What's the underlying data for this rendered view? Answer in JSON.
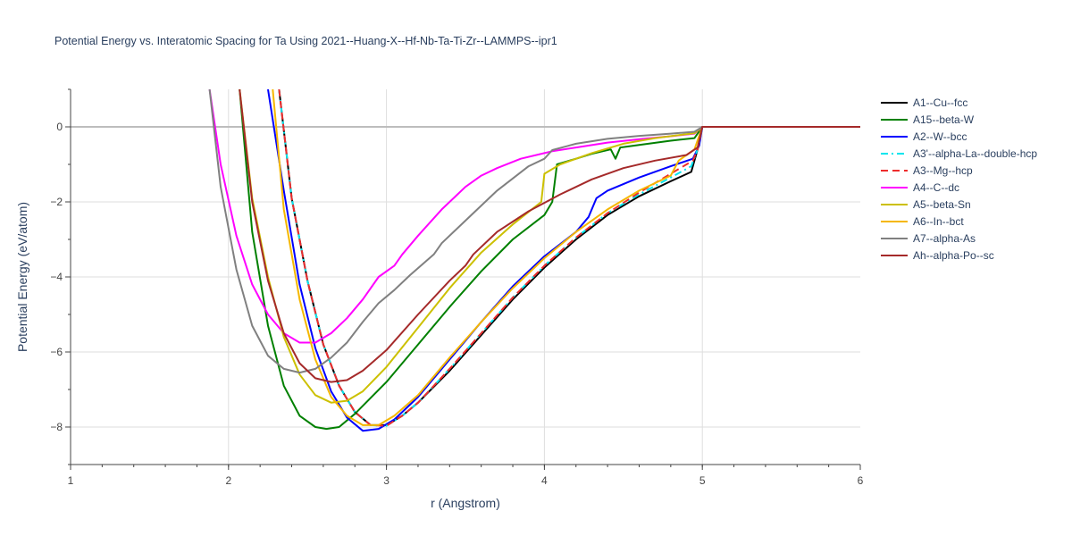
{
  "chart_data": {
    "type": "line",
    "title": "Potential Energy vs. Interatomic Spacing for Ta Using 2021--Huang-X--Hf-Nb-Ta-Ti-Zr--LAMMPS--ipr1",
    "xlabel": "r (Angstrom)",
    "ylabel": "Potential Energy (eV/atom)",
    "xlim": [
      1,
      6
    ],
    "ylim": [
      -9,
      1
    ],
    "xticks": [
      "1",
      "2",
      "3",
      "4",
      "5",
      "6"
    ],
    "yticks": [
      "−8",
      "−6",
      "−4",
      "−2",
      "0"
    ],
    "grid": true,
    "legend_position": "right",
    "series": [
      {
        "name": "A1--Cu--fcc",
        "color": "#000000",
        "dash": "solid",
        "x": [
          2.32,
          2.4,
          2.5,
          2.6,
          2.7,
          2.8,
          2.9,
          3.0,
          3.1,
          3.2,
          3.4,
          3.6,
          3.8,
          4.0,
          4.2,
          4.4,
          4.6,
          4.8,
          4.93,
          4.97,
          5.0,
          6.0
        ],
        "y": [
          1.0,
          -1.9,
          -4.1,
          -5.8,
          -6.9,
          -7.6,
          -7.95,
          -7.95,
          -7.7,
          -7.35,
          -6.5,
          -5.55,
          -4.6,
          -3.75,
          -3.0,
          -2.35,
          -1.85,
          -1.45,
          -1.2,
          -0.6,
          0.0,
          0.0
        ]
      },
      {
        "name": "A15--beta-W",
        "color": "#008000",
        "dash": "solid",
        "x": [
          2.07,
          2.15,
          2.25,
          2.35,
          2.45,
          2.55,
          2.62,
          2.7,
          2.8,
          3.0,
          3.2,
          3.4,
          3.6,
          3.8,
          4.0,
          4.05,
          4.08,
          4.2,
          4.3,
          4.42,
          4.45,
          4.48,
          4.6,
          4.8,
          4.95,
          5.0,
          6.0
        ],
        "y": [
          1.0,
          -2.8,
          -5.3,
          -6.9,
          -7.7,
          -8.0,
          -8.05,
          -8.0,
          -7.65,
          -6.8,
          -5.8,
          -4.8,
          -3.85,
          -3.0,
          -2.35,
          -2.0,
          -1.0,
          -0.85,
          -0.72,
          -0.6,
          -0.85,
          -0.55,
          -0.48,
          -0.37,
          -0.3,
          0.0,
          0.0
        ]
      },
      {
        "name": "A2--W--bcc",
        "color": "#0000ff",
        "dash": "solid",
        "x": [
          2.25,
          2.35,
          2.45,
          2.55,
          2.65,
          2.75,
          2.85,
          2.95,
          3.05,
          3.2,
          3.4,
          3.6,
          3.8,
          4.0,
          4.2,
          4.28,
          4.33,
          4.4,
          4.6,
          4.8,
          4.94,
          4.98,
          5.0,
          6.0
        ],
        "y": [
          1.0,
          -1.7,
          -4.2,
          -5.9,
          -7.05,
          -7.75,
          -8.1,
          -8.05,
          -7.8,
          -7.2,
          -6.2,
          -5.2,
          -4.25,
          -3.45,
          -2.8,
          -2.4,
          -1.9,
          -1.7,
          -1.35,
          -1.05,
          -0.85,
          -0.5,
          0.0,
          0.0
        ]
      },
      {
        "name": "A3'--alpha-La--double-hcp",
        "color": "#00e5ee",
        "dash": "dashdot",
        "x": [
          2.32,
          2.4,
          2.5,
          2.6,
          2.7,
          2.8,
          2.9,
          3.0,
          3.1,
          3.2,
          3.4,
          3.6,
          3.8,
          4.0,
          4.2,
          4.4,
          4.6,
          4.8,
          4.93,
          4.97,
          5.0,
          6.0
        ],
        "y": [
          1.0,
          -1.9,
          -4.1,
          -5.8,
          -6.9,
          -7.6,
          -7.95,
          -7.97,
          -7.7,
          -7.35,
          -6.45,
          -5.5,
          -4.55,
          -3.7,
          -2.95,
          -2.3,
          -1.8,
          -1.35,
          -1.05,
          -0.6,
          0.0,
          0.0
        ]
      },
      {
        "name": "A3--Mg--hcp",
        "color": "#ee2c2c",
        "dash": "dash",
        "x": [
          2.32,
          2.4,
          2.5,
          2.6,
          2.7,
          2.8,
          2.9,
          3.0,
          3.1,
          3.2,
          3.4,
          3.6,
          3.8,
          4.0,
          4.2,
          4.4,
          4.6,
          4.8,
          4.94,
          4.97,
          5.0,
          6.0
        ],
        "y": [
          1.0,
          -1.9,
          -4.1,
          -5.8,
          -6.9,
          -7.6,
          -7.95,
          -7.97,
          -7.7,
          -7.35,
          -6.45,
          -5.5,
          -4.55,
          -3.7,
          -2.95,
          -2.3,
          -1.75,
          -1.25,
          -0.9,
          -0.6,
          0.0,
          0.0
        ]
      },
      {
        "name": "A4--C--dc",
        "color": "#ff00ff",
        "dash": "solid",
        "x": [
          1.88,
          1.95,
          2.05,
          2.15,
          2.25,
          2.35,
          2.45,
          2.55,
          2.65,
          2.75,
          2.85,
          2.95,
          3.05,
          3.1,
          3.2,
          3.35,
          3.5,
          3.6,
          3.7,
          3.85,
          4.0,
          4.05,
          4.2,
          4.4,
          4.6,
          4.8,
          4.95,
          5.0,
          6.0
        ],
        "y": [
          1.0,
          -1.0,
          -2.9,
          -4.2,
          -5.0,
          -5.5,
          -5.75,
          -5.75,
          -5.5,
          -5.1,
          -4.6,
          -4.0,
          -3.7,
          -3.4,
          -2.9,
          -2.2,
          -1.6,
          -1.3,
          -1.1,
          -0.85,
          -0.7,
          -0.65,
          -0.55,
          -0.42,
          -0.33,
          -0.25,
          -0.18,
          0.0,
          0.0
        ]
      },
      {
        "name": "A5--beta-Sn",
        "color": "#ccc000",
        "dash": "solid",
        "x": [
          2.07,
          2.15,
          2.25,
          2.35,
          2.45,
          2.55,
          2.65,
          2.75,
          2.85,
          3.0,
          3.2,
          3.4,
          3.6,
          3.8,
          3.98,
          4.0,
          4.1,
          4.3,
          4.5,
          4.7,
          4.95,
          5.0,
          6.0
        ],
        "y": [
          1.0,
          -1.9,
          -4.0,
          -5.6,
          -6.6,
          -7.15,
          -7.35,
          -7.3,
          -7.05,
          -6.4,
          -5.35,
          -4.3,
          -3.35,
          -2.6,
          -2.0,
          -1.25,
          -1.0,
          -0.7,
          -0.45,
          -0.3,
          -0.17,
          0.0,
          0.0
        ]
      },
      {
        "name": "A6--In--bct",
        "color": "#f5b700",
        "dash": "solid",
        "x": [
          2.28,
          2.35,
          2.45,
          2.55,
          2.65,
          2.75,
          2.85,
          2.95,
          3.05,
          3.2,
          3.4,
          3.6,
          3.8,
          4.0,
          4.2,
          4.4,
          4.6,
          4.8,
          4.85,
          4.95,
          5.0,
          6.0
        ],
        "y": [
          1.0,
          -2.2,
          -4.6,
          -6.2,
          -7.2,
          -7.7,
          -7.95,
          -7.95,
          -7.7,
          -7.15,
          -6.15,
          -5.2,
          -4.3,
          -3.5,
          -2.8,
          -2.2,
          -1.7,
          -1.3,
          -0.9,
          -0.6,
          0.0,
          0.0
        ]
      },
      {
        "name": "A7--alpha-As",
        "color": "#808080",
        "dash": "solid",
        "x": [
          1.88,
          1.95,
          2.05,
          2.15,
          2.25,
          2.35,
          2.45,
          2.55,
          2.65,
          2.75,
          2.85,
          2.95,
          3.05,
          3.15,
          3.3,
          3.35,
          3.5,
          3.7,
          3.9,
          4.0,
          4.05,
          4.2,
          4.4,
          4.6,
          4.8,
          4.95,
          5.0,
          6.0
        ],
        "y": [
          1.0,
          -1.6,
          -3.8,
          -5.3,
          -6.1,
          -6.45,
          -6.55,
          -6.45,
          -6.15,
          -5.75,
          -5.2,
          -4.7,
          -4.35,
          -3.95,
          -3.4,
          -3.1,
          -2.5,
          -1.7,
          -1.05,
          -0.85,
          -0.62,
          -0.45,
          -0.32,
          -0.24,
          -0.18,
          -0.13,
          0.0,
          0.0
        ]
      },
      {
        "name": "Ah--alpha-Po--sc",
        "color": "#a52a2a",
        "dash": "solid",
        "x": [
          2.07,
          2.15,
          2.25,
          2.35,
          2.45,
          2.55,
          2.65,
          2.75,
          2.85,
          3.0,
          3.2,
          3.4,
          3.5,
          3.55,
          3.7,
          3.9,
          4.1,
          4.3,
          4.5,
          4.7,
          4.9,
          4.97,
          5.0,
          6.0
        ],
        "y": [
          1.0,
          -2.0,
          -4.1,
          -5.5,
          -6.3,
          -6.7,
          -6.8,
          -6.75,
          -6.5,
          -5.95,
          -5.0,
          -4.1,
          -3.7,
          -3.4,
          -2.8,
          -2.25,
          -1.8,
          -1.4,
          -1.1,
          -0.9,
          -0.75,
          -0.55,
          0.0,
          0.0
        ]
      }
    ]
  }
}
